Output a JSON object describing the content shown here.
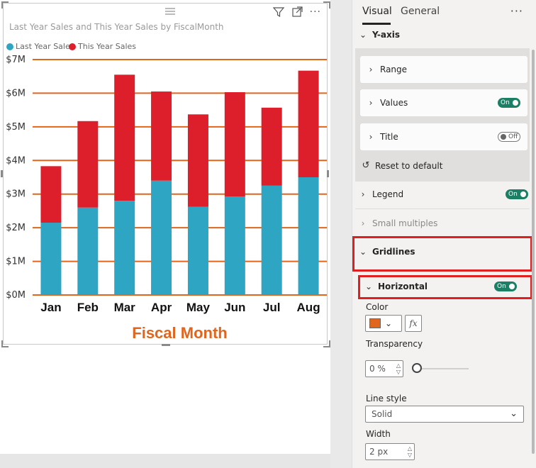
{
  "chart": {
    "title": "Last Year Sales and This Year Sales by FiscalMonth",
    "legend": [
      {
        "name": "Last Year Sales",
        "color": "#2ea5c2"
      },
      {
        "name": "This Year Sales",
        "color": "#dc1f2b"
      }
    ],
    "xlabel": "Fiscal Month",
    "gridline_color": "#e0661e"
  },
  "chart_data": {
    "type": "bar",
    "stacked": true,
    "categories": [
      "Jan",
      "Feb",
      "Mar",
      "Apr",
      "May",
      "Jun",
      "Jul",
      "Aug"
    ],
    "series": [
      {
        "name": "Last Year Sales",
        "values": [
          2.15,
          2.6,
          2.8,
          3.4,
          2.62,
          2.93,
          3.25,
          3.5
        ]
      },
      {
        "name": "This Year Sales",
        "values": [
          1.68,
          2.57,
          3.75,
          2.65,
          2.75,
          3.1,
          2.32,
          3.17
        ]
      }
    ],
    "xlabel": "Fiscal Month",
    "ylabel": "",
    "ylim": [
      0,
      7
    ],
    "yticks": [
      "$0M",
      "$1M",
      "$2M",
      "$3M",
      "$4M",
      "$5M",
      "$6M",
      "$7M"
    ],
    "grid": "horizontal",
    "legend_position": "top-left"
  },
  "pane": {
    "tabs": {
      "visual": "Visual",
      "general": "General"
    },
    "more": "···",
    "yaxis": "Y-axis",
    "range": "Range",
    "values": "Values",
    "values_toggle": "On",
    "title": "Title",
    "title_toggle": "Off",
    "reset": "Reset to default",
    "legend": "Legend",
    "legend_toggle": "On",
    "small_multiples": "Small multiples",
    "gridlines": "Gridlines",
    "horizontal": "Horizontal",
    "horizontal_toggle": "On",
    "color_label": "Color",
    "color_value": "#e0661e",
    "fx": "fx",
    "transparency_label": "Transparency",
    "transparency_value": "0 %",
    "transparency_level": 0,
    "line_style_label": "Line style",
    "line_style_value": "Solid",
    "width_label": "Width",
    "width_value": "2 px"
  }
}
